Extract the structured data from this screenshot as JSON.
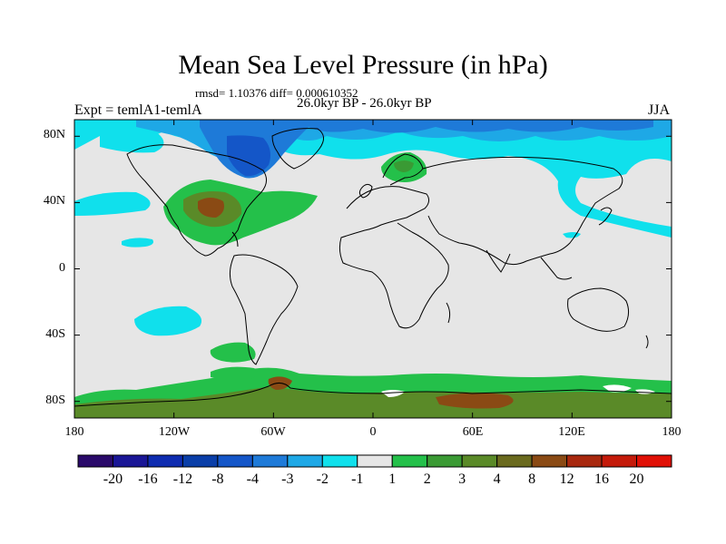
{
  "title": "Mean Sea Level Pressure (in hPa)",
  "stats": "rmsd= 1.10376 diff= 0.000610352",
  "period": "26.0kyr BP - 26.0kyr BP",
  "experiment": "Expt = temlA1-temlA",
  "season": "JJA",
  "lat_ticks": [
    "80N",
    "40N",
    "0",
    "40S",
    "80S"
  ],
  "lon_ticks": [
    "180",
    "120W",
    "60W",
    "0",
    "60E",
    "120E",
    "180"
  ],
  "colorbar": {
    "labels": [
      "-20",
      "-16",
      "-12",
      "-8",
      "-4",
      "-3",
      "-2",
      "-1",
      "1",
      "2",
      "3",
      "4",
      "8",
      "12",
      "16",
      "20"
    ],
    "colors": [
      "#2a0a6a",
      "#1a1696",
      "#0e2cb0",
      "#0a3ea8",
      "#1456c8",
      "#1e7ad8",
      "#1ea8e6",
      "#10e0ec",
      "#e6e6e6",
      "#24c04a",
      "#3a9a34",
      "#5a8a28",
      "#6a6a1e",
      "#8a4a14",
      "#a8280e",
      "#c41a0a",
      "#e01006"
    ]
  },
  "colors": {
    "neutral": "#e6e6e6",
    "light_blue": "#10e0ec",
    "mid_blue": "#1ea8e6",
    "blue": "#1e7ad8",
    "dark_blue": "#1456c8",
    "green": "#24c04a",
    "mid_green": "#3a9a34",
    "olive": "#5a8a28",
    "brown": "#8a4a14",
    "coast": "#000000"
  }
}
